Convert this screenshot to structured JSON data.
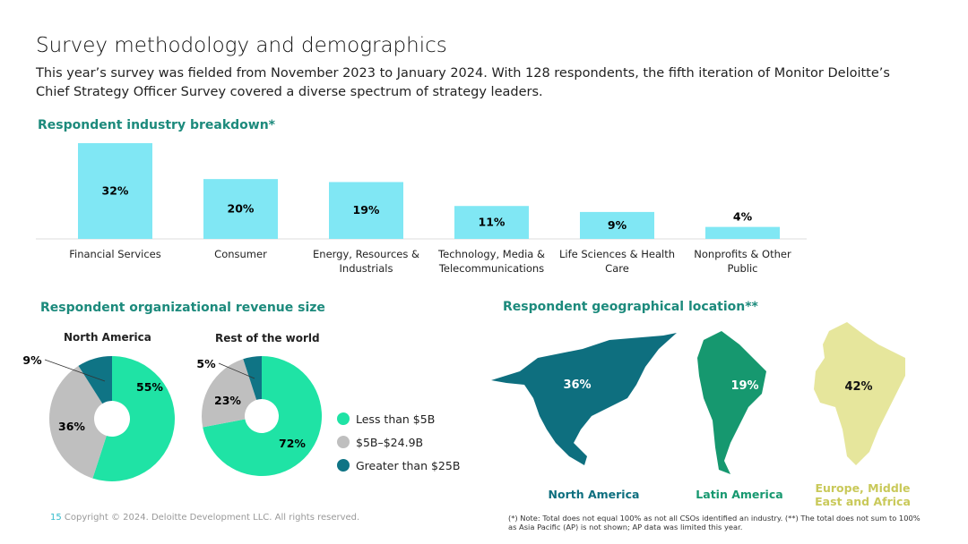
{
  "title": "Survey methodology and demographics",
  "intro": "This year’s survey was fielded from November 2023 to January 2024. With 128 respondents, the fifth iteration of Monitor Deloitte’s Chief Strategy Officer Survey covered a diverse spectrum of strategy leaders.",
  "colors": {
    "bar": "#80e7f4",
    "green": "#1fe3a5",
    "grey": "#bfbfbf",
    "teal": "#0f7485",
    "heading": "#1c8a7c",
    "na_map": "#0e6f7f",
    "la_map": "#16986f",
    "emea_map": "#e6e69c"
  },
  "chart_data": [
    {
      "type": "bar",
      "title": "Respondent industry breakdown*",
      "categories": [
        "Financial Services",
        "Consumer",
        "Energy, Resources & Industrials",
        "Technology, Media & Telecommunications",
        "Life Sciences & Health Care",
        "Nonprofits & Other Public"
      ],
      "values": [
        32,
        20,
        19,
        11,
        9,
        4
      ],
      "data_labels": [
        "32%",
        "20%",
        "19%",
        "11%",
        "9%",
        "4%"
      ],
      "ylim": [
        0,
        32
      ]
    },
    {
      "type": "pie",
      "title": "Respondent organizational revenue size",
      "subtitle": "North America",
      "categories": [
        "Less than $5B",
        "$5B–$24.9B",
        "Greater than $25B"
      ],
      "values": [
        55,
        36,
        9
      ],
      "data_labels": [
        "55%",
        "36%",
        "9%"
      ]
    },
    {
      "type": "pie",
      "subtitle": "Rest of the world",
      "categories": [
        "Less than $5B",
        "$5B–$24.9B",
        "Greater than $25B"
      ],
      "values": [
        72,
        23,
        5
      ],
      "data_labels": [
        "72%",
        "23%",
        "5%"
      ]
    },
    {
      "type": "bar",
      "title": "Respondent geographical location**",
      "categories": [
        "North America",
        "Latin America",
        "Europe, Middle East and Africa"
      ],
      "values": [
        36,
        19,
        42
      ],
      "data_labels": [
        "36%",
        "19%",
        "42%"
      ]
    }
  ],
  "legend": [
    "Less than $5B",
    "$5B–$24.9B",
    "Greater than $25B"
  ],
  "footer": {
    "page": "15",
    "copyright": "Copyright © 2024. Deloitte Development LLC. All rights reserved.",
    "note": "(*) Note: Total does not equal 100% as not all CSOs identified an industry. (**) The total does not sum to 100% as Asia Pacific (AP) is not shown; AP data was limited this year."
  }
}
